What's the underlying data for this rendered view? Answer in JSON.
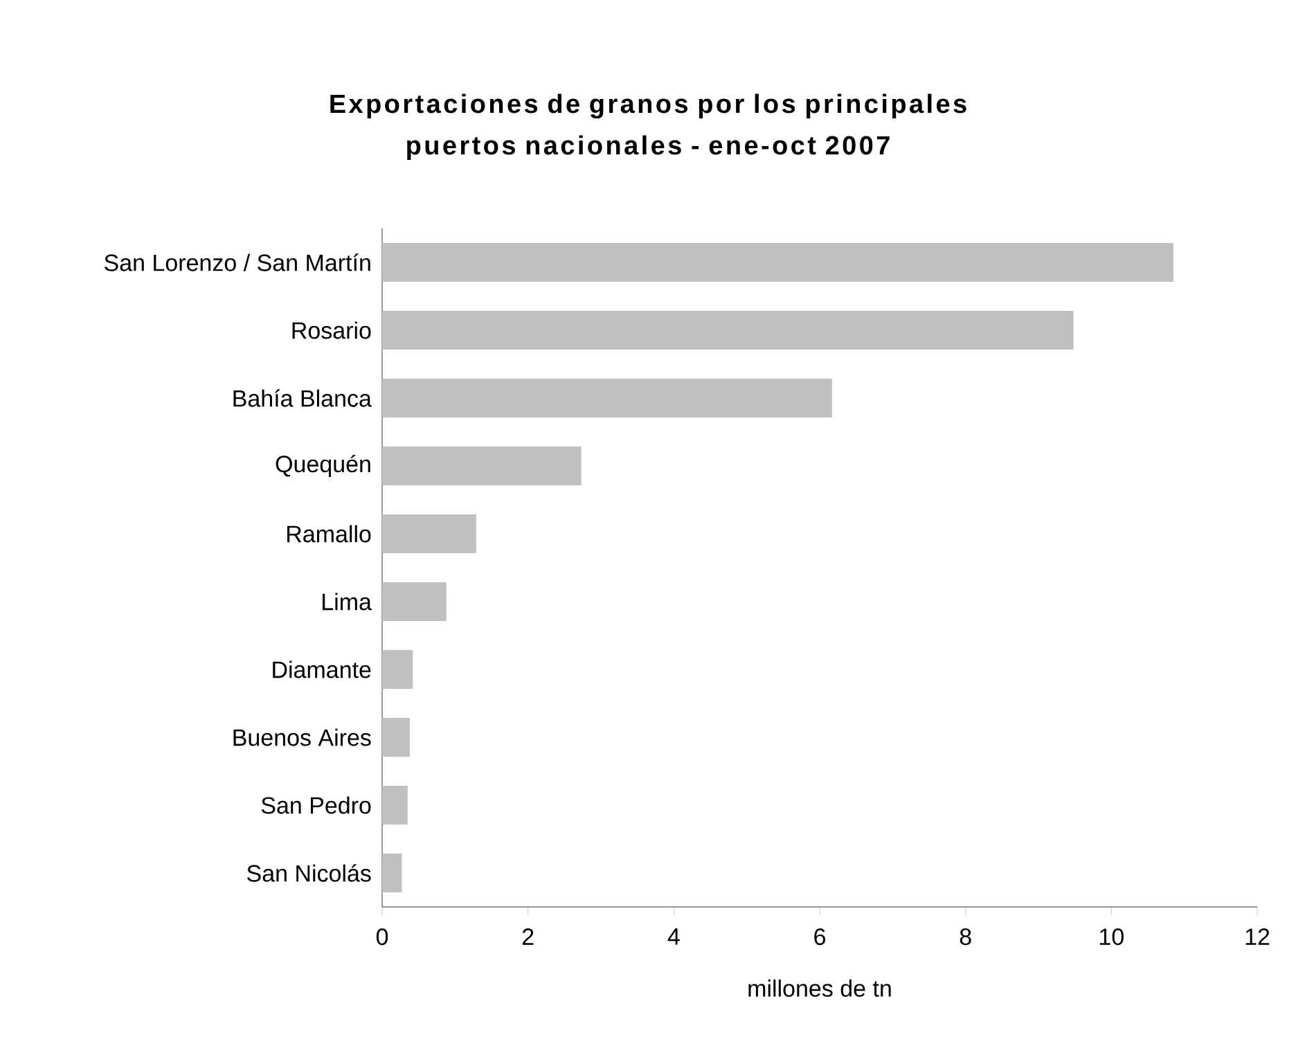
{
  "chart_data": {
    "type": "bar",
    "orientation": "horizontal",
    "title": "Exportaciones de granos por los principales puertos nacionales - ene-oct 2007",
    "xlabel": "millones de tn",
    "categories": [
      "San Lorenzo / San Martín",
      "Rosario",
      "Bahía Blanca",
      "Quequén",
      "Ramallo",
      "Lima",
      "Diamante",
      "Buenos Aires",
      "San Pedro",
      "San Nicolás"
    ],
    "values": [
      10.85,
      9.48,
      6.17,
      2.73,
      1.29,
      0.88,
      0.42,
      0.38,
      0.35,
      0.27
    ],
    "color": "#c0c0c0",
    "xlim": [
      0,
      12
    ],
    "xticks": [
      0,
      2,
      4,
      6,
      8,
      10,
      12
    ]
  }
}
